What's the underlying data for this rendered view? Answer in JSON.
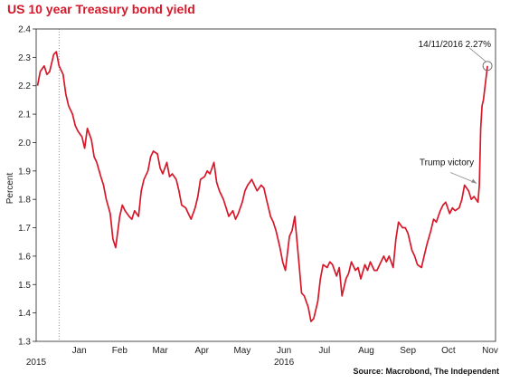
{
  "title": "US 10 year Treasury bond yield",
  "source": "Source: Macrobond, The Independent",
  "chart_data": {
    "type": "line",
    "title": "US 10 year Treasury bond yield",
    "xlabel": "",
    "ylabel": "Percent",
    "ylim": [
      1.3,
      2.4
    ],
    "yticks": [
      "1.3",
      "1.4",
      "1.5",
      "1.6",
      "1.7",
      "1.8",
      "1.9",
      "2.0",
      "2.1",
      "2.2",
      "2.3",
      "2.4"
    ],
    "xlim": [
      "2015-12-15",
      "2016-11-20"
    ],
    "xticks": [
      {
        "label": "Jan",
        "date": "2016-01-16"
      },
      {
        "label": "Feb",
        "date": "2016-02-15"
      },
      {
        "label": "Mar",
        "date": "2016-03-16"
      },
      {
        "label": "Apr",
        "date": "2016-04-16"
      },
      {
        "label": "May",
        "date": "2016-05-16"
      },
      {
        "label": "Jun",
        "date": "2016-06-16"
      },
      {
        "label": "Jul",
        "date": "2016-07-16"
      },
      {
        "label": "Aug",
        "date": "2016-08-16"
      },
      {
        "label": "Sep",
        "date": "2016-09-16"
      },
      {
        "label": "Oct",
        "date": "2016-10-16"
      },
      {
        "label": "Nov",
        "date": "2016-11-16"
      }
    ],
    "year_labels": [
      {
        "label": "2015",
        "date": "2015-12-15"
      },
      {
        "label": "2016",
        "date": "2016-06-16"
      }
    ],
    "year_divider": "2016-01-01",
    "grid": false,
    "line_color": "#d7182a",
    "series": [
      {
        "x": [
          "2015-12-16",
          "2015-12-18",
          "2015-12-21",
          "2015-12-23",
          "2015-12-25",
          "2015-12-28",
          "2015-12-30",
          "2016-01-01",
          "2016-01-04",
          "2016-01-06",
          "2016-01-08",
          "2016-01-11",
          "2016-01-13",
          "2016-01-15",
          "2016-01-18",
          "2016-01-20",
          "2016-01-22",
          "2016-01-25",
          "2016-01-27",
          "2016-01-29",
          "2016-02-01",
          "2016-02-03",
          "2016-02-05",
          "2016-02-08",
          "2016-02-10",
          "2016-02-12",
          "2016-02-15",
          "2016-02-17",
          "2016-02-19",
          "2016-02-22",
          "2016-02-24",
          "2016-02-26",
          "2016-02-29",
          "2016-03-02",
          "2016-03-04",
          "2016-03-07",
          "2016-03-09",
          "2016-03-11",
          "2016-03-14",
          "2016-03-16",
          "2016-03-18",
          "2016-03-21",
          "2016-03-23",
          "2016-03-25",
          "2016-03-28",
          "2016-03-30",
          "2016-04-01",
          "2016-04-04",
          "2016-04-06",
          "2016-04-08",
          "2016-04-11",
          "2016-04-13",
          "2016-04-15",
          "2016-04-18",
          "2016-04-20",
          "2016-04-22",
          "2016-04-25",
          "2016-04-27",
          "2016-04-29",
          "2016-05-02",
          "2016-05-04",
          "2016-05-06",
          "2016-05-09",
          "2016-05-11",
          "2016-05-13",
          "2016-05-16",
          "2016-05-18",
          "2016-05-20",
          "2016-05-23",
          "2016-05-25",
          "2016-05-27",
          "2016-05-30",
          "2016-06-01",
          "2016-06-03",
          "2016-06-06",
          "2016-06-08",
          "2016-06-10",
          "2016-06-13",
          "2016-06-15",
          "2016-06-17",
          "2016-06-20",
          "2016-06-22",
          "2016-06-24",
          "2016-06-27",
          "2016-06-29",
          "2016-07-01",
          "2016-07-04",
          "2016-07-06",
          "2016-07-08",
          "2016-07-11",
          "2016-07-13",
          "2016-07-15",
          "2016-07-18",
          "2016-07-20",
          "2016-07-22",
          "2016-07-25",
          "2016-07-27",
          "2016-07-29",
          "2016-08-01",
          "2016-08-03",
          "2016-08-05",
          "2016-08-08",
          "2016-08-10",
          "2016-08-12",
          "2016-08-15",
          "2016-08-17",
          "2016-08-19",
          "2016-08-22",
          "2016-08-24",
          "2016-08-26",
          "2016-08-29",
          "2016-08-31",
          "2016-09-02",
          "2016-09-05",
          "2016-09-07",
          "2016-09-09",
          "2016-09-12",
          "2016-09-14",
          "2016-09-16",
          "2016-09-19",
          "2016-09-21",
          "2016-09-23",
          "2016-09-26",
          "2016-09-28",
          "2016-09-30",
          "2016-10-03",
          "2016-10-05",
          "2016-10-07",
          "2016-10-10",
          "2016-10-12",
          "2016-10-14",
          "2016-10-17",
          "2016-10-19",
          "2016-10-21",
          "2016-10-24",
          "2016-10-26",
          "2016-10-28",
          "2016-10-31",
          "2016-11-02",
          "2016-11-04",
          "2016-11-07",
          "2016-11-08",
          "2016-11-09",
          "2016-11-10",
          "2016-11-11",
          "2016-11-14"
        ],
        "values": [
          2.2,
          2.25,
          2.27,
          2.24,
          2.25,
          2.31,
          2.32,
          2.27,
          2.24,
          2.17,
          2.13,
          2.1,
          2.06,
          2.04,
          2.02,
          1.98,
          2.05,
          2.01,
          1.95,
          1.93,
          1.88,
          1.85,
          1.8,
          1.75,
          1.66,
          1.63,
          1.74,
          1.78,
          1.76,
          1.74,
          1.73,
          1.76,
          1.74,
          1.83,
          1.87,
          1.9,
          1.95,
          1.97,
          1.96,
          1.91,
          1.89,
          1.93,
          1.88,
          1.89,
          1.87,
          1.83,
          1.78,
          1.77,
          1.75,
          1.73,
          1.77,
          1.81,
          1.87,
          1.88,
          1.9,
          1.89,
          1.93,
          1.86,
          1.83,
          1.8,
          1.77,
          1.74,
          1.76,
          1.73,
          1.75,
          1.79,
          1.83,
          1.85,
          1.87,
          1.85,
          1.83,
          1.85,
          1.84,
          1.8,
          1.74,
          1.72,
          1.69,
          1.63,
          1.58,
          1.55,
          1.67,
          1.69,
          1.74,
          1.58,
          1.47,
          1.46,
          1.42,
          1.37,
          1.38,
          1.44,
          1.52,
          1.57,
          1.56,
          1.58,
          1.57,
          1.53,
          1.56,
          1.46,
          1.52,
          1.54,
          1.58,
          1.55,
          1.56,
          1.52,
          1.57,
          1.55,
          1.58,
          1.55,
          1.55,
          1.57,
          1.6,
          1.58,
          1.6,
          1.56,
          1.66,
          1.72,
          1.7,
          1.7,
          1.68,
          1.62,
          1.6,
          1.57,
          1.56,
          1.6,
          1.64,
          1.69,
          1.73,
          1.72,
          1.76,
          1.78,
          1.79,
          1.75,
          1.77,
          1.76,
          1.77,
          1.8,
          1.85,
          1.83,
          1.8,
          1.81,
          1.79,
          1.85,
          2.05,
          2.13,
          2.15,
          2.27
        ]
      }
    ],
    "annotations": [
      {
        "text": "14/11/2016 2.27%",
        "x": "2016-11-14",
        "y": 2.27
      },
      {
        "text": "Trump victory",
        "x": "2016-11-08",
        "y": 1.85
      }
    ]
  }
}
